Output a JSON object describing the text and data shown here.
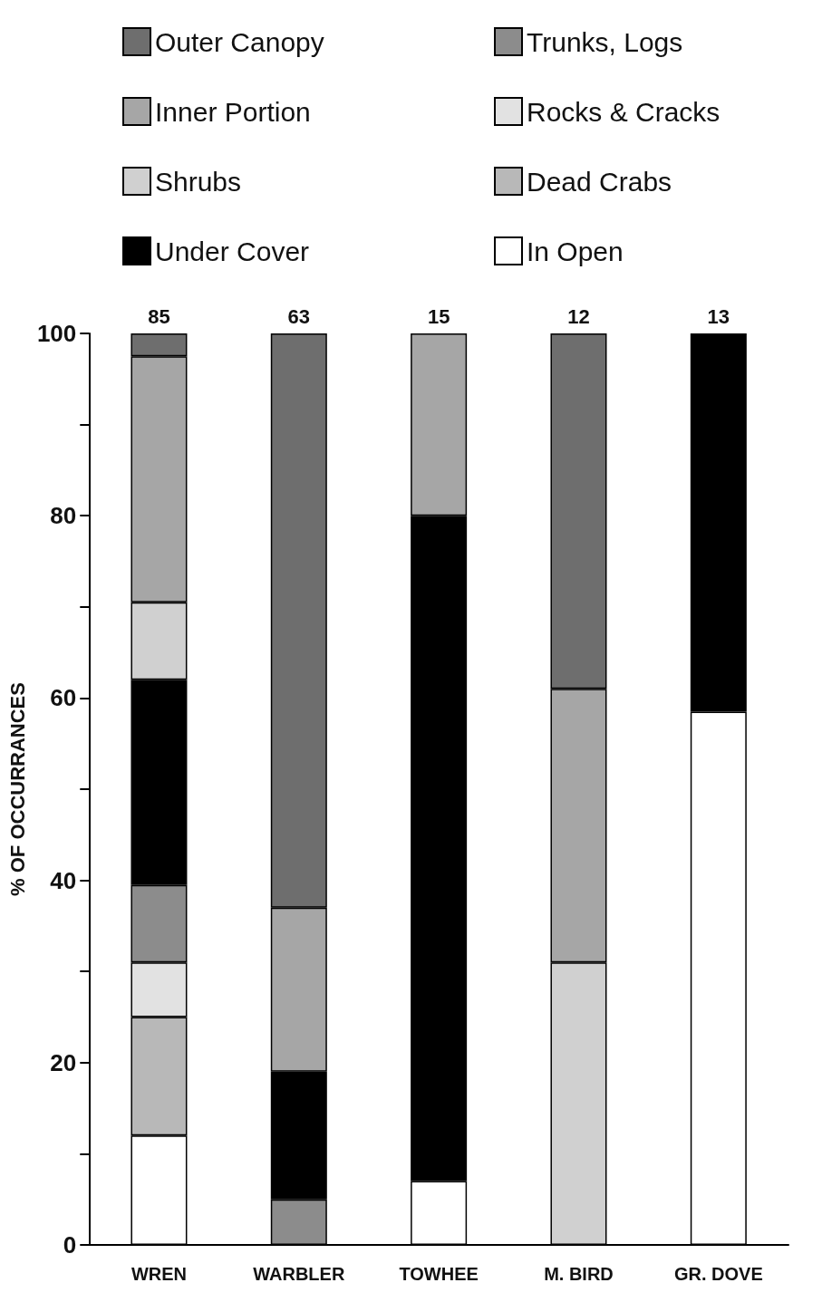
{
  "chart_data": {
    "type": "bar",
    "stacked": true,
    "ylabel": "% OF OCCURRANCES",
    "categories": [
      "WREN",
      "WARBLER",
      "TOWHEE",
      "M. BIRD",
      "GR. DOVE"
    ],
    "series": [
      {
        "name": "In Open",
        "color": "#ffffff",
        "values": [
          12,
          null,
          7,
          null,
          58.5
        ]
      },
      {
        "name": "Dead Crabs",
        "color": "#b8b8b8",
        "values": [
          13,
          null,
          null,
          null,
          null
        ]
      },
      {
        "name": "Rocks & Cracks",
        "color": "#e2e2e2",
        "values": [
          6,
          null,
          null,
          null,
          null
        ]
      },
      {
        "name": "Trunks, Logs",
        "color": "#8c8c8c",
        "values": [
          8.5,
          5,
          null,
          null,
          null
        ]
      },
      {
        "name": "Under Cover",
        "color": "#000000",
        "values": [
          22.5,
          14,
          73,
          null,
          41.5
        ]
      },
      {
        "name": "Shrubs",
        "color": "#d0d0d0",
        "values": [
          8.5,
          null,
          null,
          31,
          null
        ]
      },
      {
        "name": "Inner Portion",
        "color": "#a6a6a6",
        "values": [
          27,
          18,
          20,
          30,
          null
        ]
      },
      {
        "name": "Outer Canopy",
        "color": "#6e6e6e",
        "values": [
          2.5,
          63,
          null,
          39,
          null
        ]
      }
    ],
    "ylim": [
      0,
      100
    ],
    "yticks": [
      0,
      {
        "value": 10,
        "label": null
      },
      20,
      {
        "value": 30,
        "label": null
      },
      40,
      {
        "value": 50,
        "label": null
      },
      60,
      {
        "value": 70,
        "label": null
      },
      80,
      {
        "value": 90,
        "label": null
      },
      100
    ],
    "annotations": [
      {
        "text": "85",
        "x": "WREN",
        "y": 100
      },
      {
        "text": "63",
        "x": "WARBLER",
        "y": 100
      },
      {
        "text": "15",
        "x": "TOWHEE",
        "y": 100
      },
      {
        "text": "12",
        "x": "M. BIRD",
        "y": 100
      },
      {
        "text": "13",
        "x": "GR. DOVE",
        "y": 100
      }
    ],
    "grid": false,
    "legend": "top"
  }
}
